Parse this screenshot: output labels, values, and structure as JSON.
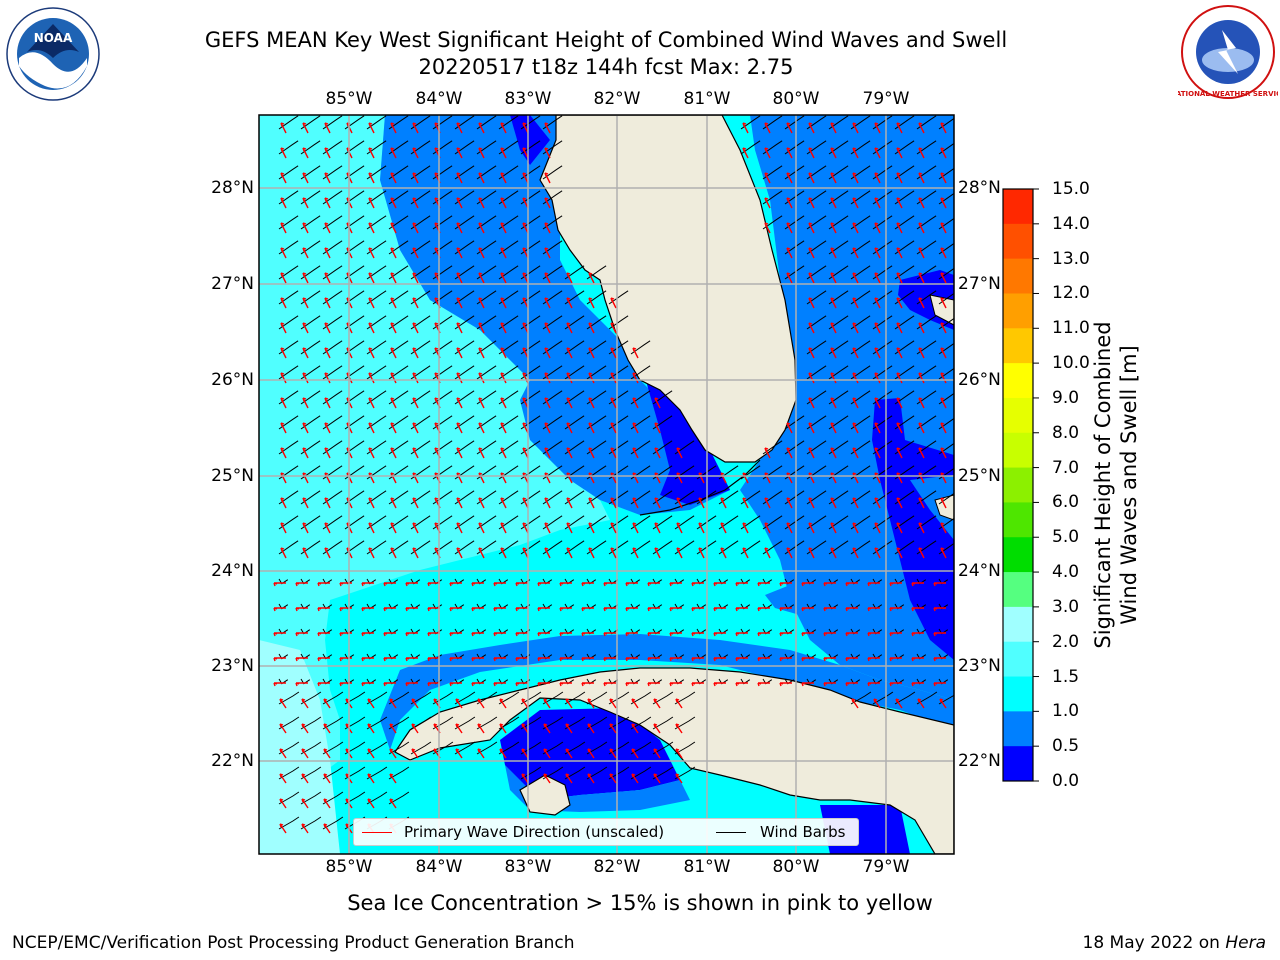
{
  "title": {
    "line1": "GEFS MEAN Key West Significant Height of Combined Wind Waves and Swell",
    "line2": "20220517 t18z 144h fcst   Max: 2.75"
  },
  "map": {
    "lon_labels": [
      "85°W",
      "84°W",
      "83°W",
      "82°W",
      "81°W",
      "80°W",
      "79°W"
    ],
    "lat_labels": [
      "28°N",
      "27°N",
      "26°N",
      "25°N",
      "24°N",
      "23°N",
      "22°N"
    ],
    "region": "Florida Straits / Key West",
    "land_color": "#efecdc",
    "grid_color": "#b0b0b0",
    "barb_color": "#000000",
    "wave_arrow_color": "#ff0000"
  },
  "legend": {
    "wave_label": "Primary Wave Direction (unscaled)",
    "wind_label": "Wind Barbs",
    "wave_color": "#ff0000",
    "wind_color": "#000000"
  },
  "colorbar": {
    "title_line1": "Significant Height of Combined",
    "title_line2": "Wind Waves and Swell [m]",
    "ticks": [
      "15.0",
      "14.0",
      "13.0",
      "12.0",
      "11.0",
      "10.0",
      "9.0",
      "8.0",
      "7.0",
      "6.0",
      "5.0",
      "4.0",
      "3.0",
      "2.0",
      "1.5",
      "1.0",
      "0.5",
      "0.0"
    ],
    "colors": [
      "#ff0000",
      "#ff2800",
      "#ff5000",
      "#ff7800",
      "#ff9f00",
      "#ffc800",
      "#ffff00",
      "#e6ff00",
      "#c8ff00",
      "#8cf000",
      "#4ee600",
      "#00dd00",
      "#55ff80",
      "#a0ffff",
      "#50ffff",
      "#00ffff",
      "#0080ff",
      "#0000ff"
    ]
  },
  "footer": {
    "note": "Sea Ice Concentration > 15% is shown in pink to yellow",
    "credit_left": "NCEP/EMC/Verification Post Processing Product Generation Branch",
    "date": "18 May 2022 on ",
    "host": "Hera"
  },
  "logos": {
    "noaa_text": "NOAA",
    "nws_text": "NATIONAL WEATHER SERVICE"
  }
}
